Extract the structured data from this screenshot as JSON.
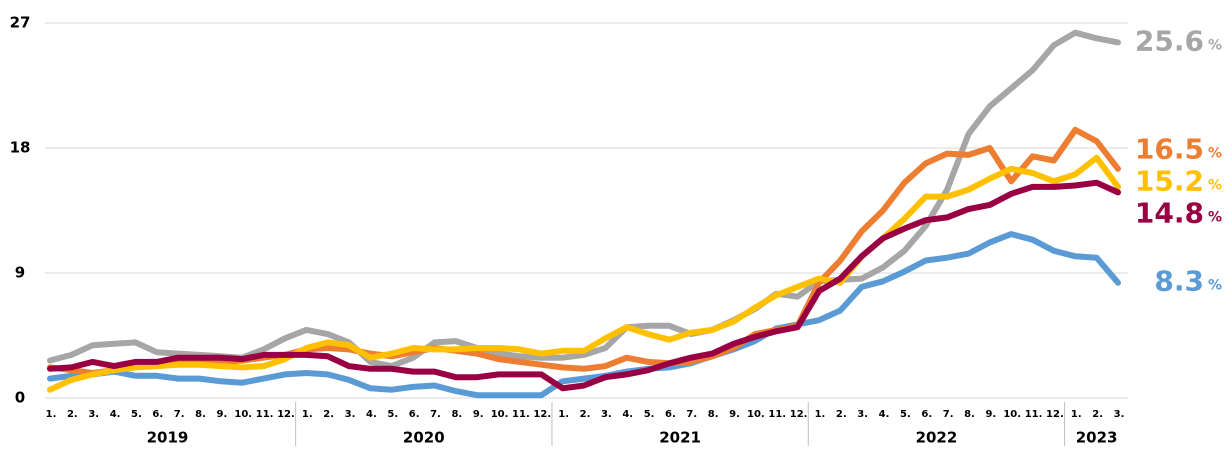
{
  "chart_data": {
    "type": "line",
    "categories": [
      "1.",
      "2.",
      "3.",
      "4.",
      "5.",
      "6.",
      "7.",
      "8.",
      "9.",
      "10.",
      "11.",
      "12.",
      "1.",
      "2.",
      "3.",
      "4.",
      "5.",
      "6.",
      "7.",
      "8.",
      "9.",
      "10.",
      "11.",
      "12.",
      "1.",
      "2.",
      "3.",
      "4.",
      "5.",
      "6.",
      "7.",
      "8.",
      "9.",
      "10.",
      "11.",
      "12.",
      "1.",
      "2.",
      "3.",
      "4.",
      "5.",
      "6.",
      "7.",
      "8.",
      "9.",
      "10.",
      "11.",
      "12.",
      "1.",
      "2.",
      "3."
    ],
    "years": [
      "2019",
      "2020",
      "2021",
      "2022",
      "2023"
    ],
    "ylim": [
      0,
      27
    ],
    "yticks": [
      0,
      9,
      18,
      27
    ],
    "grid": true,
    "unit": "%",
    "series": [
      {
        "color": "#5b9bd5",
        "end_label": "8.3",
        "values": [
          1.4,
          1.6,
          1.7,
          1.9,
          1.6,
          1.6,
          1.4,
          1.4,
          1.2,
          1.1,
          1.4,
          1.7,
          1.8,
          1.7,
          1.3,
          0.7,
          0.6,
          0.8,
          0.9,
          0.5,
          0.2,
          0.2,
          0.2,
          0.2,
          1.2,
          1.4,
          1.6,
          1.9,
          2.1,
          2.2,
          2.5,
          3.0,
          3.5,
          4.1,
          5.0,
          5.3,
          5.6,
          6.3,
          8.0,
          8.4,
          9.1,
          9.9,
          10.1,
          10.4,
          11.2,
          11.8,
          11.4,
          10.6,
          10.2,
          10.1,
          8.3
        ]
      },
      {
        "color": "#a6a6a6",
        "end_label": "25.6",
        "values": [
          2.7,
          3.1,
          3.8,
          3.9,
          4.0,
          3.3,
          3.2,
          3.1,
          3.0,
          2.9,
          3.5,
          4.3,
          4.9,
          4.6,
          4.0,
          2.6,
          2.3,
          2.9,
          4.0,
          4.1,
          3.6,
          3.2,
          3.0,
          2.9,
          2.9,
          3.1,
          3.6,
          5.1,
          5.2,
          5.2,
          4.6,
          4.9,
          5.6,
          6.4,
          7.5,
          7.3,
          8.4,
          8.5,
          8.6,
          9.4,
          10.6,
          12.4,
          15.0,
          19.0,
          21.0,
          22.3,
          23.6,
          25.4,
          26.3,
          25.9,
          25.6
        ]
      },
      {
        "color": "#ed7d31",
        "end_label": "16.5",
        "values": [
          2.2,
          2.0,
          1.8,
          2.0,
          2.3,
          2.4,
          2.6,
          2.6,
          2.6,
          2.7,
          2.9,
          3.1,
          3.5,
          3.6,
          3.5,
          3.2,
          3.0,
          3.3,
          3.6,
          3.4,
          3.2,
          2.8,
          2.6,
          2.4,
          2.2,
          2.1,
          2.3,
          2.9,
          2.6,
          2.5,
          2.6,
          3.0,
          3.6,
          4.6,
          4.9,
          5.2,
          8.3,
          9.9,
          12.0,
          13.5,
          15.5,
          16.9,
          17.6,
          17.5,
          18.0,
          15.6,
          17.4,
          17.1,
          19.3,
          18.5,
          16.5
        ]
      },
      {
        "color": "#ffc000",
        "end_label": "15.2",
        "values": [
          0.6,
          1.3,
          1.7,
          2.0,
          2.2,
          2.3,
          2.4,
          2.4,
          2.3,
          2.2,
          2.3,
          2.8,
          3.6,
          4.0,
          3.8,
          2.9,
          3.2,
          3.6,
          3.5,
          3.5,
          3.6,
          3.6,
          3.5,
          3.2,
          3.4,
          3.4,
          4.3,
          5.1,
          4.6,
          4.2,
          4.7,
          4.9,
          5.5,
          6.5,
          7.4,
          8.0,
          8.6,
          8.3,
          10.2,
          11.5,
          12.9,
          14.5,
          14.5,
          15.0,
          15.8,
          16.5,
          16.2,
          15.6,
          16.1,
          17.3,
          15.2
        ]
      },
      {
        "color": "#990044",
        "end_label": "14.8",
        "values": [
          2.1,
          2.2,
          2.6,
          2.3,
          2.6,
          2.6,
          2.9,
          2.9,
          2.9,
          2.8,
          3.1,
          3.1,
          3.1,
          3.0,
          2.3,
          2.1,
          2.1,
          1.9,
          1.9,
          1.5,
          1.5,
          1.7,
          1.7,
          1.7,
          0.7,
          0.9,
          1.5,
          1.7,
          2.0,
          2.5,
          2.9,
          3.2,
          3.9,
          4.4,
          4.8,
          5.1,
          7.7,
          8.6,
          10.2,
          11.5,
          12.2,
          12.8,
          13.0,
          13.6,
          13.9,
          14.7,
          15.2,
          15.2,
          15.3,
          15.5,
          14.8
        ]
      }
    ]
  }
}
